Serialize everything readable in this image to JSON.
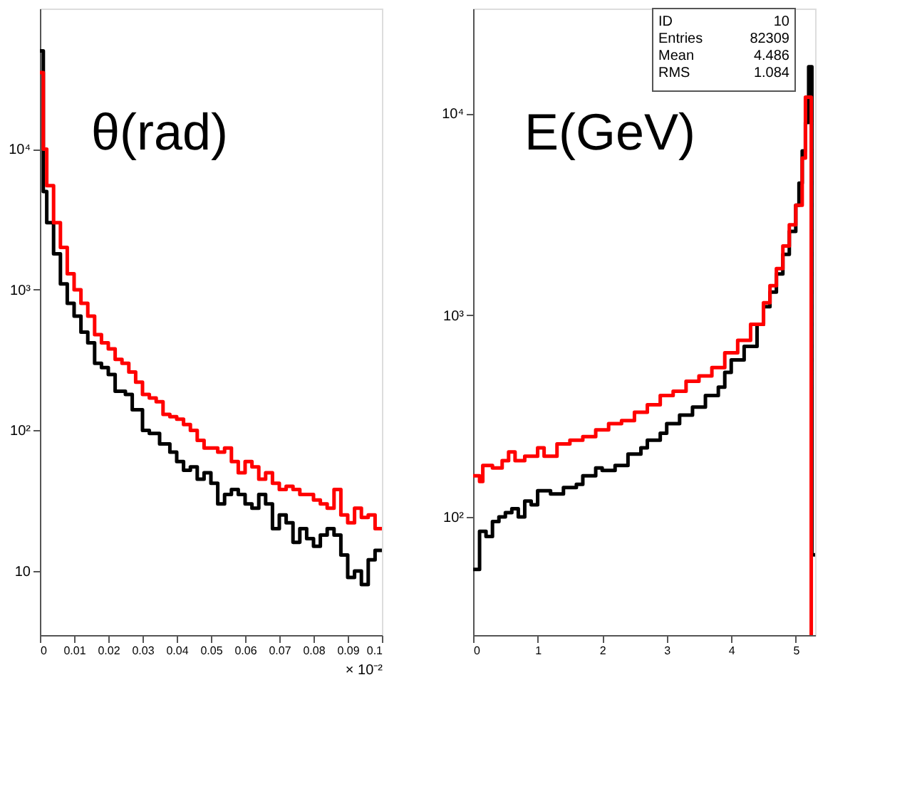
{
  "chart_data": [
    {
      "type": "step",
      "title": "θ(rad)",
      "xlabel": "× 10⁻²",
      "log": "y",
      "grid": false,
      "xlim": [
        0,
        0.1
      ],
      "xticks": [
        0,
        0.01,
        0.02,
        0.03,
        0.04,
        0.05,
        0.06,
        0.07,
        0.08,
        0.09,
        0.1
      ],
      "ylim": [
        3.5,
        100000
      ],
      "yticks": [
        {
          "value": 10,
          "label": "10"
        },
        {
          "value": 100,
          "label": "10²"
        },
        {
          "value": 1000,
          "label": "10³"
        },
        {
          "value": 10000,
          "label": "10⁴"
        }
      ],
      "series": [
        {
          "color": "#000000",
          "x": [
            0,
            0.001,
            0.002,
            0.004,
            0.006,
            0.008,
            0.01,
            0.012,
            0.014,
            0.016,
            0.018,
            0.02,
            0.022,
            0.025,
            0.027,
            0.03,
            0.032,
            0.035,
            0.038,
            0.04,
            0.042,
            0.044,
            0.046,
            0.048,
            0.05,
            0.052,
            0.054,
            0.056,
            0.058,
            0.06,
            0.062,
            0.064,
            0.066,
            0.068,
            0.07,
            0.072,
            0.074,
            0.076,
            0.078,
            0.08,
            0.082,
            0.084,
            0.086,
            0.088,
            0.09,
            0.092,
            0.094,
            0.096,
            0.098,
            0.1
          ],
          "values": [
            50000,
            5000,
            3000,
            1800,
            1100,
            800,
            650,
            500,
            420,
            300,
            280,
            250,
            190,
            180,
            140,
            100,
            95,
            80,
            70,
            60,
            52,
            55,
            45,
            50,
            42,
            30,
            35,
            38,
            35,
            30,
            28,
            35,
            30,
            20,
            25,
            22,
            16,
            20,
            17,
            15,
            18,
            20,
            18,
            13,
            9,
            10,
            8,
            12,
            14,
            14
          ]
        },
        {
          "color": "#ff0000",
          "x": [
            0,
            0.001,
            0.002,
            0.004,
            0.006,
            0.008,
            0.01,
            0.012,
            0.014,
            0.016,
            0.018,
            0.02,
            0.022,
            0.024,
            0.026,
            0.028,
            0.03,
            0.032,
            0.034,
            0.036,
            0.038,
            0.04,
            0.042,
            0.044,
            0.046,
            0.048,
            0.05,
            0.052,
            0.054,
            0.056,
            0.058,
            0.06,
            0.062,
            0.064,
            0.066,
            0.068,
            0.07,
            0.072,
            0.074,
            0.076,
            0.078,
            0.08,
            0.082,
            0.084,
            0.086,
            0.088,
            0.09,
            0.092,
            0.094,
            0.096,
            0.098,
            0.1
          ],
          "values": [
            35000,
            10000,
            5500,
            3000,
            2000,
            1300,
            1000,
            800,
            650,
            480,
            420,
            380,
            320,
            300,
            260,
            220,
            180,
            170,
            160,
            130,
            125,
            120,
            110,
            100,
            85,
            75,
            75,
            70,
            75,
            60,
            50,
            60,
            55,
            45,
            50,
            42,
            38,
            40,
            38,
            35,
            35,
            32,
            30,
            28,
            38,
            25,
            22,
            28,
            24,
            25,
            20,
            20
          ]
        }
      ]
    },
    {
      "type": "step",
      "title": "E(GeV)",
      "log": "y",
      "grid": false,
      "annotations": [
        "ID",
        "10",
        "Entries",
        "82309",
        "Mean",
        "4.486",
        "RMS",
        "1.084"
      ],
      "xlim": [
        0,
        5.3
      ],
      "xticks": [
        0,
        1,
        2,
        3,
        4,
        5
      ],
      "ylim": [
        26,
        33000
      ],
      "yticks": [
        {
          "value": 100,
          "label": "10²"
        },
        {
          "value": 1000,
          "label": "10³"
        },
        {
          "value": 10000,
          "label": "10⁴"
        }
      ],
      "series": [
        {
          "color": "#000000",
          "x": [
            0,
            0.1,
            0.2,
            0.3,
            0.4,
            0.5,
            0.6,
            0.7,
            0.8,
            0.9,
            1.0,
            1.2,
            1.4,
            1.6,
            1.7,
            1.9,
            2.0,
            2.2,
            2.4,
            2.6,
            2.7,
            2.9,
            3.0,
            3.2,
            3.4,
            3.6,
            3.8,
            3.9,
            4.0,
            4.2,
            4.4,
            4.5,
            4.6,
            4.7,
            4.8,
            4.9,
            5.0,
            5.05,
            5.1,
            5.15,
            5.2,
            5.25,
            5.3
          ],
          "values": [
            55,
            85,
            80,
            95,
            100,
            105,
            110,
            100,
            120,
            115,
            135,
            130,
            140,
            145,
            160,
            175,
            170,
            180,
            205,
            220,
            240,
            260,
            290,
            320,
            350,
            400,
            440,
            520,
            600,
            700,
            900,
            1100,
            1300,
            1600,
            2000,
            2600,
            3500,
            4500,
            6500,
            9000,
            17000,
            65,
            65
          ]
        },
        {
          "color": "#ff0000",
          "x": [
            0,
            0.1,
            0.15,
            0.3,
            0.45,
            0.55,
            0.65,
            0.8,
            1.0,
            1.1,
            1.3,
            1.5,
            1.7,
            1.9,
            2.1,
            2.3,
            2.5,
            2.7,
            2.9,
            3.1,
            3.3,
            3.5,
            3.7,
            3.9,
            4.1,
            4.3,
            4.5,
            4.6,
            4.7,
            4.8,
            4.9,
            5.0,
            5.1,
            5.15,
            5.24
          ],
          "values": [
            160,
            150,
            180,
            175,
            190,
            210,
            190,
            200,
            220,
            200,
            230,
            240,
            250,
            270,
            290,
            300,
            330,
            360,
            400,
            420,
            470,
            500,
            550,
            650,
            750,
            900,
            1150,
            1400,
            1700,
            2200,
            2800,
            3500,
            6000,
            12000,
            26
          ]
        }
      ]
    }
  ]
}
